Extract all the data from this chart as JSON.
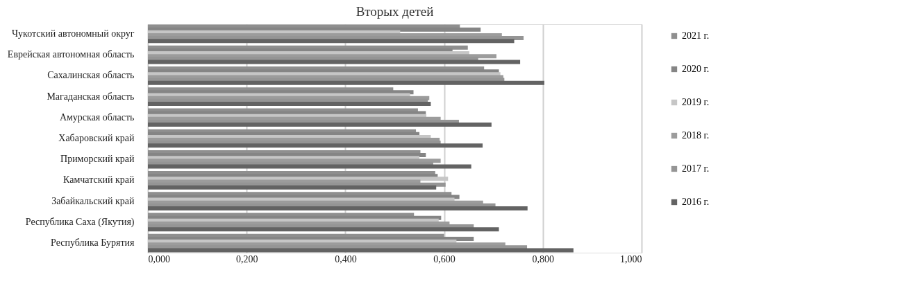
{
  "chart_data": {
    "type": "bar",
    "orientation": "horizontal",
    "title": "Вторых детей",
    "categories": [
      "Чукотский автономный округ",
      "Еврейская автономная область",
      "Сахалинская область",
      "Магаданская область",
      "Амурская область",
      "Хабаровский край",
      "Приморский край",
      "Камчатский край",
      "Забайкальский край",
      "Республика Саха (Якутия)",
      "Республика Бурятия"
    ],
    "series": [
      {
        "name": "2021 г.",
        "color": "#8f8f8f",
        "values": [
          0.632,
          0.648,
          0.681,
          0.497,
          0.547,
          0.543,
          0.552,
          0.582,
          0.615,
          0.539,
          0.6
        ]
      },
      {
        "name": "2020 г.",
        "color": "#858585",
        "values": [
          0.674,
          0.617,
          0.711,
          0.538,
          0.563,
          0.55,
          0.563,
          0.587,
          0.631,
          0.594,
          0.66
        ]
      },
      {
        "name": "2019 г.",
        "color": "#c6c6c6",
        "values": [
          0.511,
          0.651,
          0.714,
          0.531,
          0.564,
          0.573,
          0.55,
          0.608,
          0.621,
          0.589,
          0.625
        ]
      },
      {
        "name": "2018 г.",
        "color": "#9c9c9c",
        "values": [
          0.717,
          0.706,
          0.72,
          0.57,
          0.593,
          0.591,
          0.593,
          0.552,
          0.679,
          0.611,
          0.724
        ]
      },
      {
        "name": "2017 г.",
        "color": "#959595",
        "values": [
          0.761,
          0.669,
          0.722,
          0.567,
          0.63,
          0.593,
          0.578,
          0.603,
          0.704,
          0.66,
          0.768
        ]
      },
      {
        "name": "2016 г.",
        "color": "#636363",
        "values": [
          0.742,
          0.754,
          0.803,
          0.573,
          0.696,
          0.678,
          0.655,
          0.584,
          0.769,
          0.711,
          0.862
        ]
      }
    ],
    "xlim": [
      0,
      1.0
    ],
    "xticks": [
      {
        "value": 0,
        "label": "0,000"
      },
      {
        "value": 0.2,
        "label": "0,200"
      },
      {
        "value": 0.4,
        "label": "0,400"
      },
      {
        "value": 0.6,
        "label": "0,600"
      },
      {
        "value": 0.8,
        "label": "0,800"
      },
      {
        "value": 1.0,
        "label": "1,000"
      }
    ],
    "grid": "x",
    "legend": "right"
  }
}
